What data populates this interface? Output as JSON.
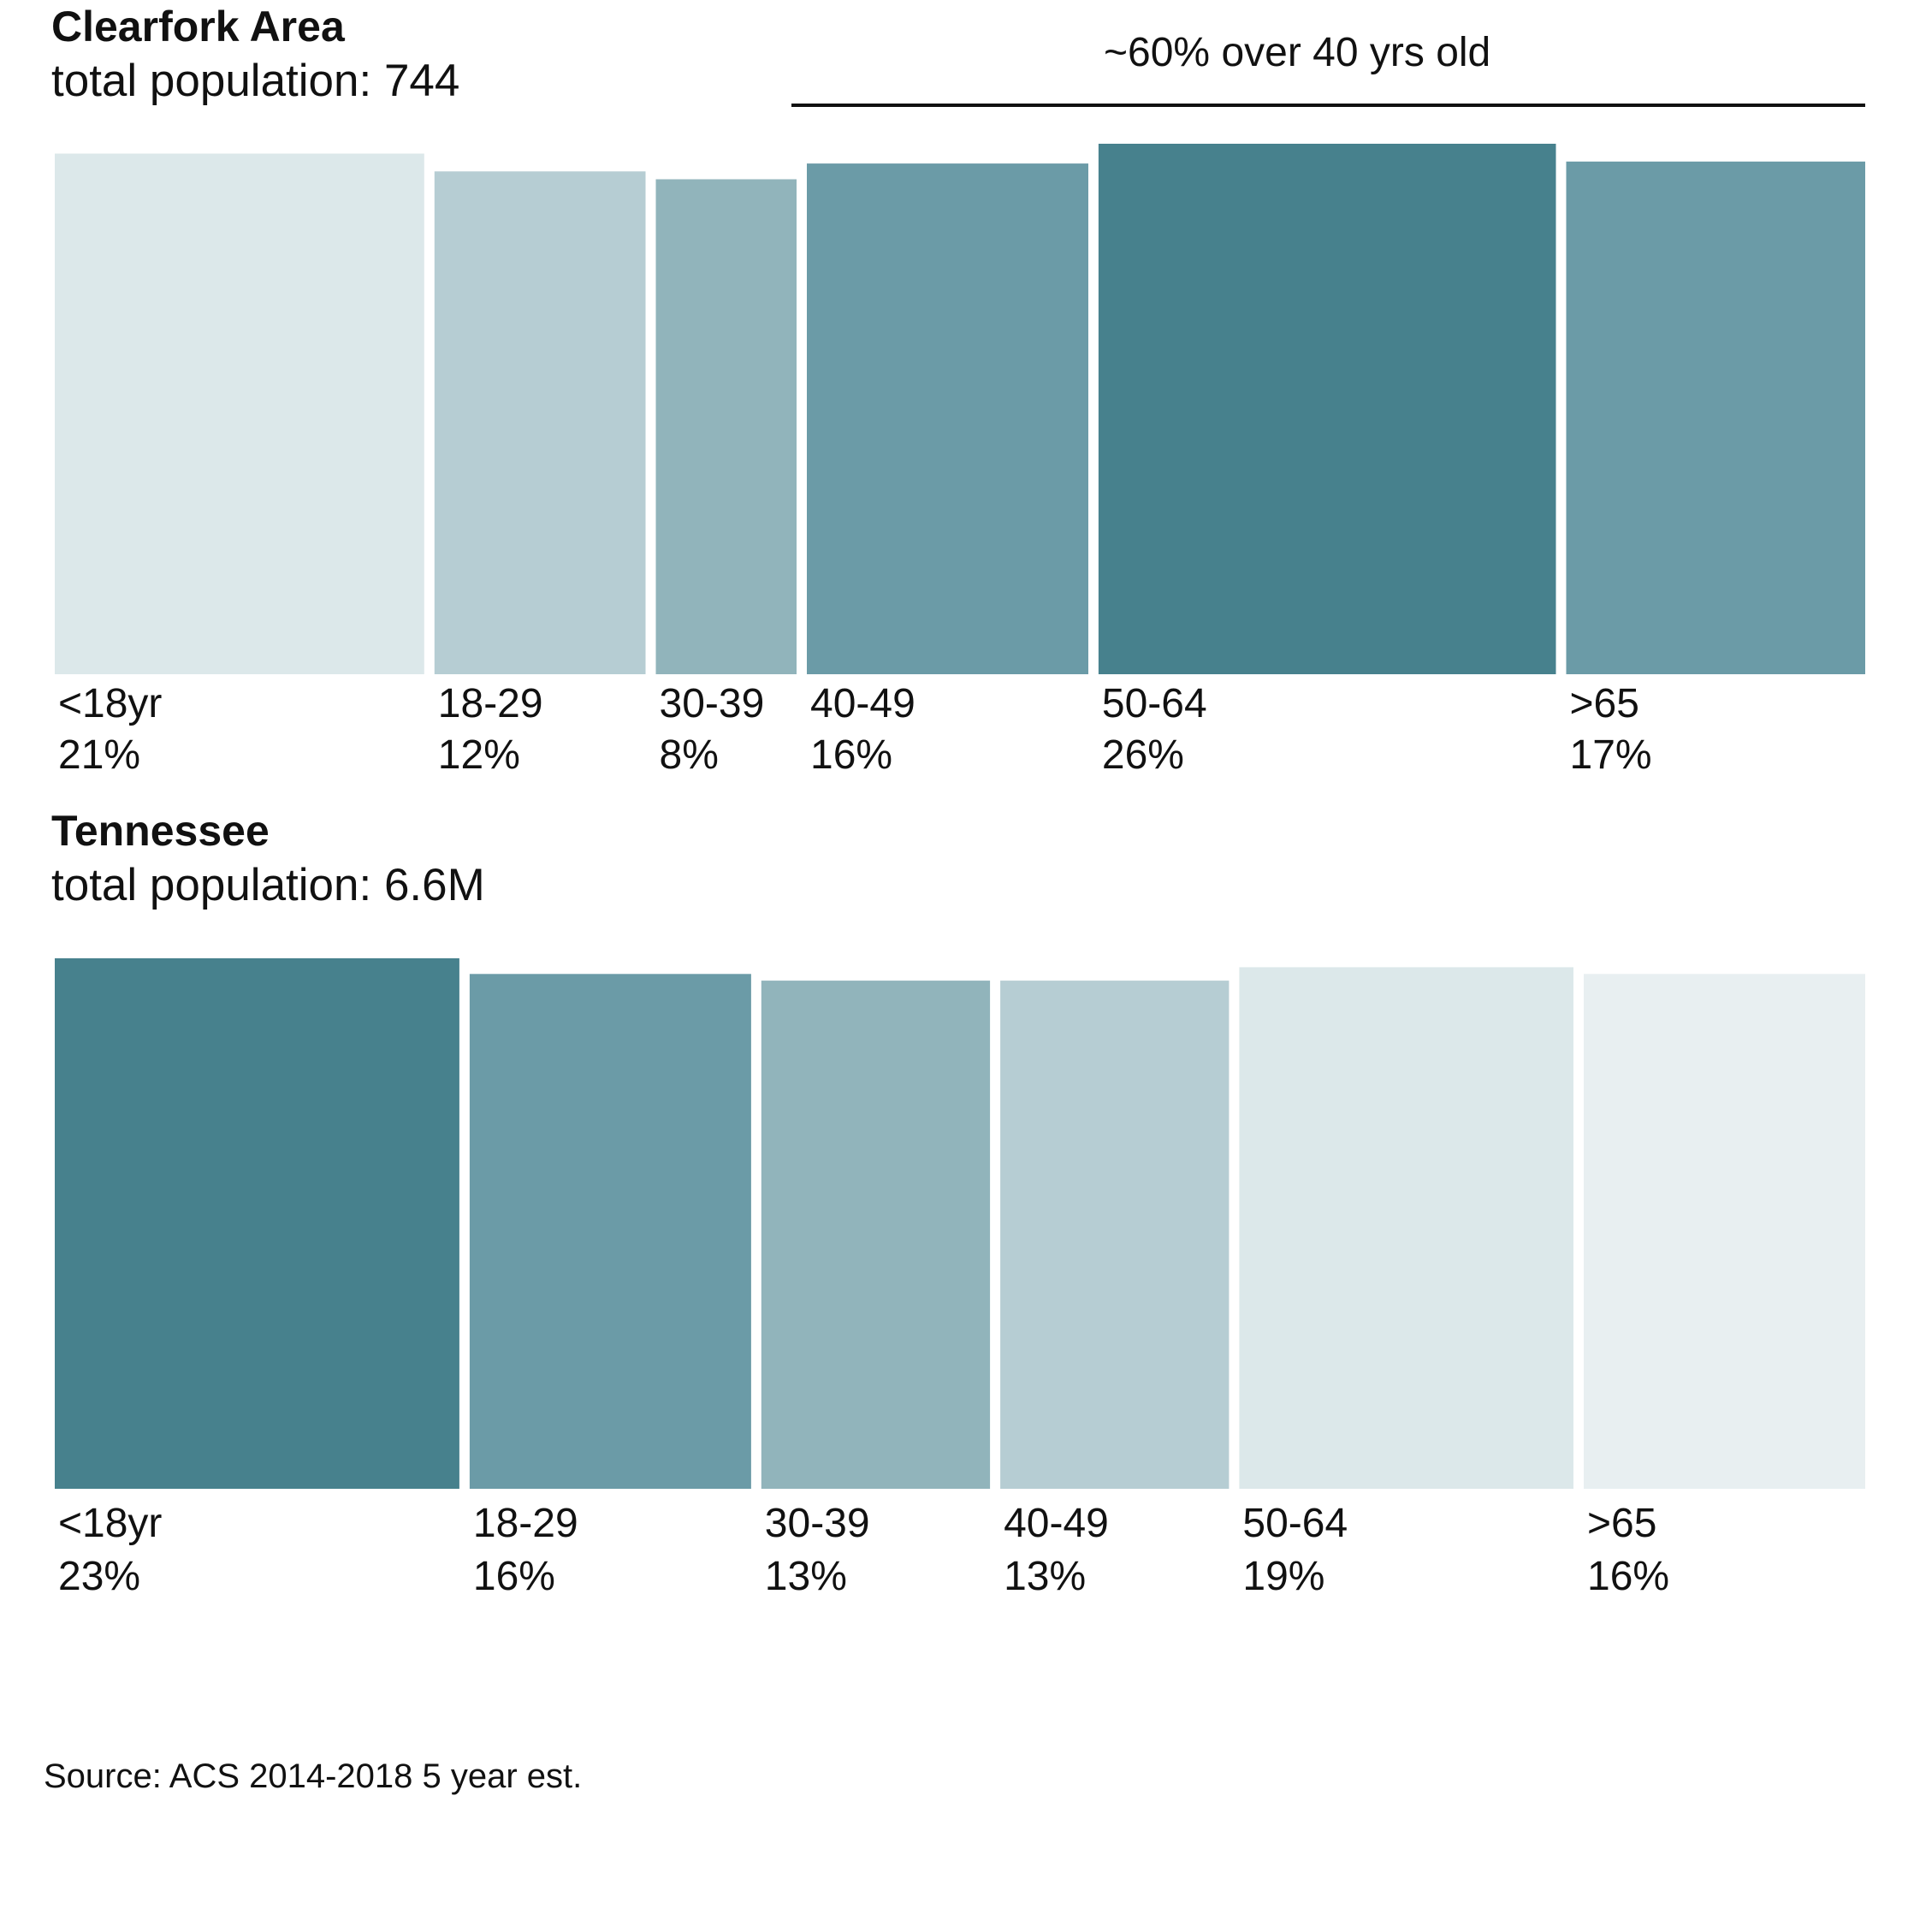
{
  "chart_data": [
    {
      "type": "bar",
      "variant": "marimekko",
      "title": "Clearfork Area",
      "subtitle": "total population: 744",
      "annotation": "~60% over 40 yrs old",
      "categories": [
        "<18yr",
        "18-29",
        "30-39",
        "40-49",
        "50-64",
        ">65"
      ],
      "value_labels": [
        "21%",
        "12%",
        "8%",
        "16%",
        "26%",
        "17%"
      ],
      "values": [
        21,
        12,
        8,
        16,
        26,
        17
      ],
      "colors": [
        "#dce8ea",
        "#b6cdd3",
        "#91b4bb",
        "#6b9ba7",
        "#47818d",
        "#6b9ba7"
      ]
    },
    {
      "type": "bar",
      "variant": "marimekko",
      "title": "Tennessee",
      "subtitle": "total population: 6.6M",
      "categories": [
        "<18yr",
        "18-29",
        "30-39",
        "40-49",
        "50-64",
        ">65"
      ],
      "value_labels": [
        "23%",
        "16%",
        "13%",
        "13%",
        "19%",
        "16%"
      ],
      "values": [
        23,
        16,
        13,
        13,
        19,
        16
      ],
      "colors": [
        "#47818d",
        "#6b9ba7",
        "#91b4bb",
        "#b6cdd3",
        "#dce8ea",
        "#e8eff1"
      ]
    }
  ],
  "source": "Source: ACS 2014-2018 5 year est."
}
